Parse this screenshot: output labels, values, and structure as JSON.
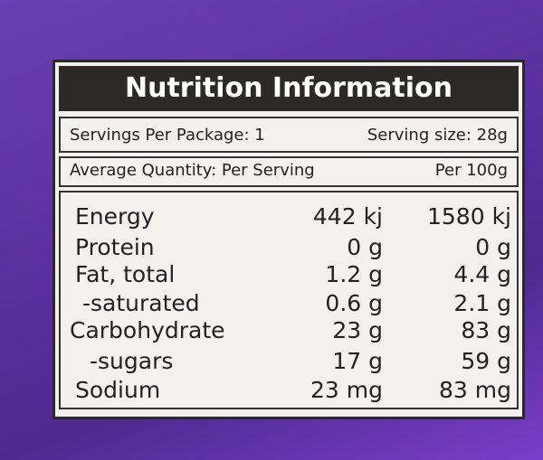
{
  "header": {
    "title": "Nutrition Information"
  },
  "servings": {
    "per_package": "Servings Per Package: 1",
    "size": "Serving size: 28g"
  },
  "columns": {
    "per_serving": "Average Quantity: Per Serving",
    "per_100g": "Per 100g"
  },
  "table": {
    "rows": [
      [
        "Energy",
        "442 kj",
        "1580 kj"
      ],
      [
        "Protein",
        "0 g",
        "0 g"
      ],
      [
        "Fat, total",
        "1.2 g",
        "4.4 g"
      ],
      [
        "-saturated",
        "0.6 g",
        "2.1 g"
      ],
      [
        "Carbohydrate",
        "23 g",
        "83 g"
      ],
      [
        "-sugars",
        "17 g",
        "59 g"
      ],
      [
        "Sodium",
        "23 mg",
        "83 mg"
      ]
    ]
  }
}
